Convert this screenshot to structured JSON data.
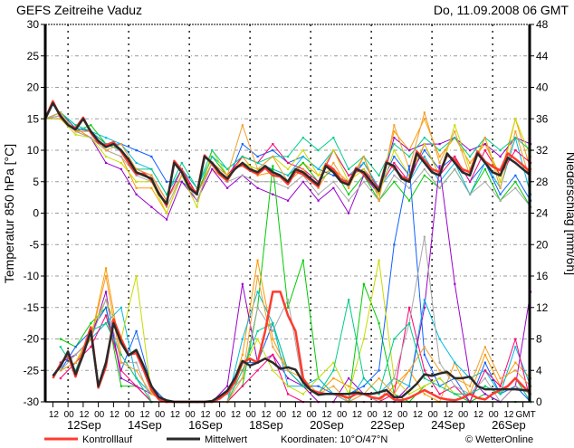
{
  "chart_data": {
    "type": "line",
    "title": "GEFS Zeitreihe Vaduz",
    "date": "Do, 11.09.2008 06 GMT",
    "ylabel": "Temperatur 850 hPa [°C]",
    "y2label": "Niederschlag [mm/6h]",
    "ylim": [
      -30,
      30
    ],
    "y2lim": [
      0,
      48
    ],
    "yticks": [
      "30",
      "25",
      "20",
      "15",
      "10",
      "5",
      "0",
      "-5",
      "-10",
      "-15",
      "-20",
      "-25",
      "-30"
    ],
    "y2ticks": [
      "48",
      "44",
      "40",
      "36",
      "32",
      "28",
      "24",
      "20",
      "16",
      "12",
      "8",
      "4",
      "0"
    ],
    "time_step_hours": 6,
    "time_start": "11Sep 06 GMT",
    "xtick_labels": [
      "12",
      "00",
      "12",
      "00",
      "12",
      "00",
      "12",
      "00",
      "12",
      "00",
      "12",
      "00",
      "12",
      "00",
      "12",
      "00",
      "12",
      "00",
      "12",
      "00",
      "12",
      "00",
      "12",
      "00",
      "12",
      "00",
      "12",
      "00",
      "12",
      "00",
      "12"
    ],
    "xtick_unit": "GMT",
    "day_labels": [
      "12Sep",
      "14Sep",
      "16Sep",
      "18Sep",
      "20Sep",
      "22Sep",
      "24Sep",
      "26Sep"
    ],
    "grid": true,
    "legend": {
      "control": "Kontrolllauf",
      "mean": "Mittelwert",
      "coords": "Koordinaten:  10°O/47°N",
      "credit": "© WetterOnline"
    },
    "colors": {
      "control": "#ff3b30",
      "mean": "#2a2a2a"
    },
    "temperature": {
      "mean": [
        15,
        17.5,
        15.5,
        14,
        13.3,
        15,
        13,
        11.5,
        10.5,
        11,
        10,
        8.5,
        6.5,
        6,
        5.5,
        3,
        1.5,
        8,
        6.5,
        4,
        3,
        9,
        8,
        6.5,
        5.5,
        7,
        8,
        7,
        6.5,
        7.5,
        6.5,
        6,
        5,
        7,
        6.5,
        5.5,
        4.5,
        7.5,
        6.5,
        5,
        4.5,
        7,
        6.5,
        5,
        3.5,
        8,
        7.5,
        5.5,
        5,
        9.5,
        8,
        6.5,
        6,
        9.5,
        8,
        6.5,
        6,
        9.5,
        8,
        6.5,
        6,
        8.8,
        8,
        7,
        6
      ],
      "control": [
        15,
        17.8,
        15.3,
        14,
        13.5,
        15.2,
        12.8,
        11.2,
        10.8,
        11.3,
        9.8,
        8,
        6.2,
        6.3,
        5.2,
        3.2,
        1.2,
        8.3,
        6.8,
        4.3,
        3.2,
        9.2,
        7.8,
        6.2,
        5.2,
        7.3,
        7.6,
        6.8,
        6.2,
        7.2,
        6,
        5.8,
        4.6,
        6.6,
        6.2,
        5.2,
        4.2,
        7.8,
        7,
        5.3,
        4.8,
        7.2,
        6.2,
        4.8,
        3.8,
        8.2,
        7.2,
        5.8,
        5.3,
        9.8,
        8.4,
        7,
        6.5,
        9.2,
        8.5,
        7,
        6.5,
        9.8,
        8.2,
        7.4,
        6.8,
        9.5,
        8.6,
        7.6,
        6.5
      ],
      "members": [
        {
          "color": "#ff9900",
          "values": [
            15,
            16,
            13.5,
            12,
            10,
            9,
            4,
            4,
            0,
            6,
            2,
            7,
            5,
            9,
            6,
            6.5,
            5,
            8,
            6,
            7,
            5,
            9,
            3,
            13,
            10,
            15,
            9,
            12,
            8,
            11,
            6,
            15,
            7
          ]
        },
        {
          "color": "#00cc00",
          "values": [
            15,
            15.5,
            13,
            14,
            11,
            10,
            7,
            6,
            2,
            7,
            3,
            9,
            6,
            8,
            7,
            7,
            6,
            8,
            5,
            7,
            3,
            6,
            2,
            5,
            2,
            6,
            4,
            7,
            3,
            7,
            2,
            5,
            1
          ]
        },
        {
          "color": "#1060ff",
          "values": [
            15,
            16,
            13.5,
            13,
            11,
            11,
            10,
            9,
            5,
            5,
            3,
            8,
            5,
            11,
            9,
            10,
            8,
            9,
            7,
            6,
            5,
            8,
            4,
            9,
            6,
            10,
            7,
            9,
            5,
            8,
            3,
            6,
            2
          ]
        },
        {
          "color": "#9900cc",
          "values": [
            15,
            15,
            13,
            12,
            8,
            7,
            3,
            1,
            -1,
            5,
            2,
            7,
            4,
            6,
            4,
            3,
            2,
            5,
            2,
            4,
            0,
            6,
            3,
            12,
            10,
            11,
            11,
            12,
            10,
            11,
            9,
            12,
            11
          ]
        },
        {
          "color": "#00bbdd",
          "values": [
            15,
            16,
            14,
            13,
            12,
            11,
            8,
            7,
            3,
            7,
            4,
            9,
            7,
            9,
            8,
            7,
            6,
            9,
            7,
            10,
            6,
            8,
            4,
            7,
            5,
            9,
            5,
            8,
            3,
            8,
            4,
            12,
            3
          ]
        },
        {
          "color": "#ff0077",
          "values": [
            15,
            15.5,
            13,
            13,
            11,
            10,
            7,
            6,
            2,
            7,
            3,
            8,
            6,
            9,
            8,
            11,
            8,
            7,
            5,
            10,
            6,
            7,
            4,
            8,
            5,
            11,
            6,
            9,
            5,
            10,
            6,
            10,
            8
          ]
        },
        {
          "color": "#c8dc00",
          "values": [
            15,
            15,
            12.5,
            12,
            9,
            8,
            5,
            5,
            0,
            6,
            1,
            10,
            6,
            8,
            7,
            9,
            7,
            10,
            6,
            10,
            5,
            7,
            3,
            10,
            6,
            11,
            6,
            14,
            7,
            12,
            5,
            15,
            9
          ]
        },
        {
          "color": "#a8a8a8",
          "values": [
            15,
            15.5,
            13,
            12,
            10,
            9,
            6,
            5,
            1,
            6,
            2,
            8,
            5,
            6,
            5,
            5,
            4,
            6,
            3,
            5,
            2,
            5,
            2,
            6,
            4,
            7,
            4,
            7,
            3,
            5,
            2,
            4,
            1
          ]
        },
        {
          "color": "#00cc88",
          "values": [
            15,
            16,
            14,
            13,
            11,
            10,
            7,
            7,
            3,
            8,
            4,
            10,
            7,
            9,
            8,
            9,
            9,
            12,
            10,
            12,
            7,
            9,
            6,
            11,
            9,
            12,
            10,
            12,
            9,
            12,
            10,
            12,
            10
          ]
        },
        {
          "color": "#f0a030",
          "values": [
            15,
            16,
            13,
            13,
            10,
            11,
            7,
            6,
            2,
            6,
            3,
            8,
            6,
            14,
            7,
            9,
            5,
            7,
            4,
            8,
            4,
            9,
            2,
            14,
            7,
            16,
            8,
            13,
            6,
            12,
            4,
            13,
            5
          ]
        }
      ]
    },
    "precipitation": {
      "mean": [
        null,
        3.3,
        4.5,
        6.4,
        3.5,
        6,
        9,
        2,
        5,
        10,
        7.5,
        5.9,
        6.6,
        4.5,
        2,
        0.6,
        0.2,
        0,
        0,
        0,
        0,
        0,
        0.1,
        0.7,
        1.4,
        3,
        5.2,
        4.6,
        5,
        5.5,
        5,
        4.2,
        4.4,
        4.1,
        2.5,
        1.5,
        0.9,
        1,
        1,
        1,
        1,
        1.2,
        1,
        1,
        1.2,
        1.5,
        0.6,
        0.6,
        1.4,
        2.3,
        3.5,
        3.3,
        3.6,
        3.8,
        3,
        3,
        3.2,
        2,
        1.6,
        1.6,
        1.6,
        1.6,
        1.6,
        1.5,
        1.4
      ],
      "control": [
        null,
        3,
        4.8,
        6,
        3.2,
        6.5,
        9.5,
        1.8,
        4.5,
        10.5,
        8,
        6,
        6.2,
        4,
        1.5,
        0.3,
        0,
        0,
        0,
        0,
        0,
        0,
        0,
        0.4,
        1.2,
        2.5,
        5,
        5.5,
        5,
        9,
        14,
        14,
        11,
        9,
        3,
        1.5,
        1.2,
        1,
        1,
        0.8,
        0.5,
        1,
        1,
        0.6,
        0.4,
        1,
        0.3,
        0.2,
        0.5,
        1,
        1.5,
        1,
        0.5,
        0.3,
        0.2,
        0.5,
        1,
        0.5,
        0.3,
        1,
        1.5,
        2,
        3,
        2,
        1
      ]
    },
    "precipitation_members": [
      {
        "color": "#00cc00",
        "values": [
          null,
          8,
          7,
          10,
          12,
          2,
          2,
          0,
          0,
          0,
          0,
          0,
          0,
          2,
          12,
          30,
          12,
          18,
          3,
          1,
          0,
          15,
          10,
          1,
          0,
          2,
          3,
          1,
          0,
          1,
          0,
          0,
          0
        ]
      },
      {
        "color": "#ff9900",
        "values": [
          null,
          5,
          6,
          8,
          17,
          6,
          3,
          0,
          0,
          0,
          0,
          0,
          0,
          6,
          18,
          8,
          4,
          2,
          1,
          3,
          2,
          1,
          0,
          2,
          4,
          1,
          0,
          5,
          1,
          6,
          2,
          5,
          3
        ]
      },
      {
        "color": "#1060ff",
        "values": [
          null,
          4,
          7,
          9,
          12,
          4,
          9,
          2,
          0,
          0,
          0,
          0,
          1,
          5,
          5,
          10,
          4,
          2,
          2,
          1,
          1,
          2,
          4,
          20,
          30,
          6,
          2,
          3,
          0,
          5,
          1,
          2,
          0
        ]
      },
      {
        "color": "#9900cc",
        "values": [
          null,
          5,
          6,
          8,
          14,
          3,
          2,
          1,
          0,
          0,
          0,
          0,
          2,
          15,
          5,
          6,
          3,
          2,
          0,
          0,
          3,
          1,
          0,
          0,
          2,
          12,
          30,
          15,
          3,
          1,
          0,
          2,
          14
        ]
      },
      {
        "color": "#00bbdd",
        "values": [
          null,
          4,
          5,
          8,
          10,
          12,
          3,
          1,
          0,
          0,
          0,
          0,
          0,
          8,
          14,
          10,
          2,
          2,
          3,
          1,
          0,
          3,
          1,
          3,
          2,
          13,
          8,
          5,
          3,
          4,
          1,
          7,
          2
        ]
      },
      {
        "color": "#ff0077",
        "values": [
          null,
          3,
          5,
          7,
          11,
          4,
          2,
          0,
          0,
          0,
          0,
          0,
          0,
          2,
          4,
          6,
          1,
          0,
          0,
          0,
          0,
          0,
          0,
          1,
          12,
          4,
          1,
          2,
          0,
          4,
          2,
          8,
          0
        ]
      },
      {
        "color": "#c8dc00",
        "values": [
          null,
          4,
          5,
          9,
          13,
          8,
          16,
          1,
          0,
          0,
          0,
          0,
          0,
          4,
          8,
          4,
          2,
          1,
          3,
          5,
          1,
          8,
          18,
          3,
          1,
          2,
          3,
          1,
          1,
          2,
          1,
          3,
          0
        ]
      },
      {
        "color": "#a8a8a8",
        "values": [
          null,
          4,
          6,
          8,
          13,
          5,
          5,
          0,
          0,
          0,
          0,
          0,
          1,
          3,
          12,
          9,
          13,
          2,
          1,
          1,
          0,
          1,
          0,
          3,
          10,
          21,
          5,
          2,
          1,
          3,
          0,
          2,
          1
        ]
      },
      {
        "color": "#00cc88",
        "values": [
          null,
          7,
          4,
          9,
          10,
          6,
          3,
          0,
          0,
          0,
          0,
          0,
          0,
          4,
          9,
          10,
          4,
          2,
          1,
          4,
          13,
          3,
          1,
          8,
          10,
          3,
          2,
          1,
          1,
          2,
          1,
          3,
          0
        ]
      },
      {
        "color": "#f0a030",
        "values": [
          null,
          4,
          5,
          8,
          16,
          5,
          4,
          1,
          0,
          0,
          0,
          0,
          0,
          3,
          16,
          7,
          4,
          3,
          1,
          2,
          0,
          1,
          3,
          1,
          4,
          7,
          4,
          3,
          2,
          7,
          3,
          4,
          2
        ]
      }
    ]
  }
}
